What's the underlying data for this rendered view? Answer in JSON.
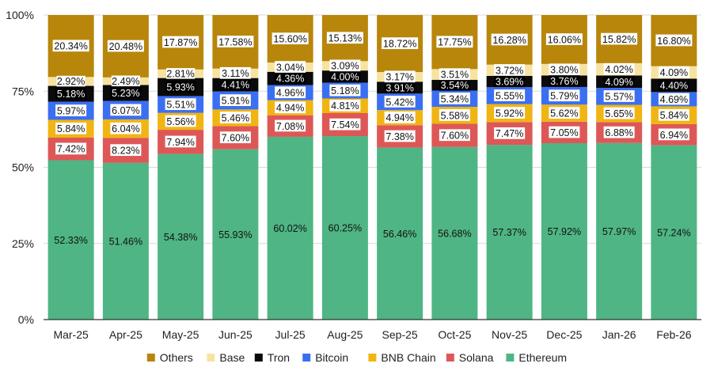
{
  "chart_data": {
    "type": "bar",
    "stacked": true,
    "title": "",
    "xlabel": "",
    "ylabel": "",
    "ylim": [
      0,
      100
    ],
    "yticks": [
      "0%",
      "25%",
      "50%",
      "75%",
      "100%"
    ],
    "ytick_values": [
      0,
      25,
      50,
      75,
      100
    ],
    "legend_position": "bottom",
    "categories": [
      "Mar-25",
      "Apr-25",
      "May-25",
      "Jun-25",
      "Jul-25",
      "Aug-25",
      "Sep-25",
      "Oct-25",
      "Nov-25",
      "Dec-25",
      "Jan-26",
      "Feb-26"
    ],
    "series": [
      {
        "name": "Ethereum",
        "color": "#4fb584",
        "label_color": "#111111",
        "label_bg": "",
        "values": [
          52.33,
          51.46,
          54.38,
          55.93,
          60.02,
          60.25,
          56.46,
          56.68,
          57.37,
          57.92,
          57.97,
          57.24
        ]
      },
      {
        "name": "Solana",
        "color": "#de5757",
        "label_color": "#111111",
        "label_bg": "#ffffff",
        "values": [
          7.42,
          8.23,
          7.94,
          7.6,
          7.08,
          7.54,
          7.38,
          7.6,
          7.47,
          7.05,
          6.88,
          6.94
        ]
      },
      {
        "name": "BNB Chain",
        "color": "#f0b512",
        "label_color": "#111111",
        "label_bg": "#ffffff",
        "values": [
          5.84,
          6.04,
          5.56,
          5.46,
          4.94,
          4.81,
          4.94,
          5.58,
          5.92,
          5.62,
          5.65,
          5.84
        ]
      },
      {
        "name": "Bitcoin",
        "color": "#3b6ff2",
        "label_color": "#111111",
        "label_bg": "#ffffff",
        "values": [
          5.97,
          6.07,
          5.51,
          5.91,
          4.96,
          5.18,
          5.42,
          5.34,
          5.55,
          5.79,
          5.57,
          4.69
        ]
      },
      {
        "name": "Tron",
        "color": "#0a0a0a",
        "label_color": "#ffffff",
        "label_bg": "#000000",
        "values": [
          5.18,
          5.23,
          5.93,
          4.41,
          4.36,
          4.0,
          3.91,
          3.54,
          3.69,
          3.76,
          4.09,
          4.4
        ]
      },
      {
        "name": "Base",
        "color": "#f7e3a1",
        "label_color": "#111111",
        "label_bg": "#ffffff",
        "values": [
          2.92,
          2.49,
          2.81,
          3.11,
          3.04,
          3.09,
          3.17,
          3.51,
          3.72,
          3.8,
          4.02,
          4.09
        ]
      },
      {
        "name": "Others",
        "color": "#b8860b",
        "label_color": "#111111",
        "label_bg": "#ffffff",
        "values": [
          20.34,
          20.48,
          17.87,
          17.58,
          15.6,
          15.13,
          18.72,
          17.75,
          16.28,
          16.06,
          15.82,
          16.8
        ]
      }
    ],
    "data_labels": [
      [
        "52.33%",
        "51.46%",
        "54.38%",
        "55.93%",
        "60.02%",
        "60.25%",
        "56.46%",
        "56.68%",
        "57.37%",
        "57.92%",
        "57.97%",
        "57.24%"
      ],
      [
        "7.42%",
        "8.23%",
        "7.94%",
        "7.60%",
        "7.08%",
        "7.54%",
        "7.38%",
        "7.60%",
        "7.47%",
        "7.05%",
        "6.88%",
        "6.94%"
      ],
      [
        "5.84%",
        "6.04%",
        "5.56%",
        "5.46%",
        "4.94%",
        "4.81%",
        "4.94%",
        "5.58%",
        "5.92%",
        "5.62%",
        "5.65%",
        "5.84%"
      ],
      [
        "5.97%",
        "6.07%",
        "5.51%",
        "5.91%",
        "4.96%",
        "5.18%",
        "5.42%",
        "5.34%",
        "5.55%",
        "5.79%",
        "5.57%",
        "4.69%"
      ],
      [
        "5.18%",
        "5.23%",
        "5.93%",
        "4.41%",
        "4.36%",
        "4.00%",
        "3.91%",
        "3.54%",
        "3.69%",
        "3.76%",
        "4.09%",
        "4.40%"
      ],
      [
        "2.92%",
        "2.49%",
        "2.81%",
        "3.11%",
        "3.04%",
        "3.09%",
        "3.17%",
        "3.51%",
        "3.72%",
        "3.80%",
        "4.02%",
        "4.09%"
      ],
      [
        "20.34%",
        "20.48%",
        "17.87%",
        "17.58%",
        "15.60%",
        "15.13%",
        "18.72%",
        "17.75%",
        "16.28%",
        "16.06%",
        "15.82%",
        "16.80%"
      ]
    ],
    "legend": [
      {
        "name": "Others",
        "color": "#b8860b"
      },
      {
        "name": "Base",
        "color": "#f7e3a1"
      },
      {
        "name": "Tron",
        "color": "#0a0a0a"
      },
      {
        "name": "Bitcoin",
        "color": "#3b6ff2"
      },
      {
        "name": "BNB Chain",
        "color": "#f0b512"
      },
      {
        "name": "Solana",
        "color": "#de5757"
      },
      {
        "name": "Ethereum",
        "color": "#4fb584"
      }
    ],
    "gridline_color": "#d9d9d9",
    "axis_color": "#333333"
  }
}
